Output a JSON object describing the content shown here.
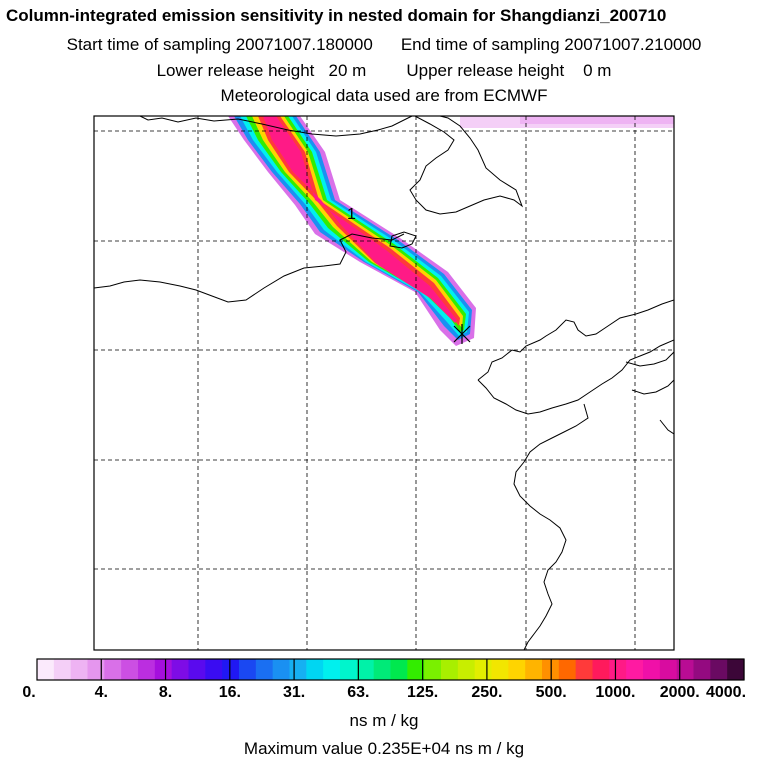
{
  "title": {
    "line1": "Column-integrated emission sensitivity in nested domain for Shangdianzi_200710",
    "start_label": "Start time of sampling 20071007.180000",
    "end_label": "End time of sampling 20071007.210000",
    "lower_label": "Lower release height   20 m",
    "upper_label": "Upper release height    0 m",
    "met_label": "Meteorological data used are from ECMWF"
  },
  "map": {
    "marker_label": "1",
    "release_marker": "release-site-cross"
  },
  "colorbar": {
    "tick_labels": [
      "0.",
      "4.",
      "8.",
      "16.",
      "31.",
      "63.",
      "125.",
      "250.",
      "500.",
      "1000.",
      "2000.",
      "4000."
    ],
    "colors": [
      "#fbeafc",
      "#f4cff7",
      "#eeb3f3",
      "#e596ee",
      "#d970e8",
      "#cc4fe3",
      "#bb2ee0",
      "#a50fdd",
      "#7e0ce6",
      "#5a0aee",
      "#3a0cf2",
      "#2018f3",
      "#1a48f2",
      "#1a6ff2",
      "#1a90f2",
      "#16b0f2",
      "#00d6f2",
      "#00f0ee",
      "#00f5cc",
      "#00f2a8",
      "#00ea78",
      "#00e84e",
      "#33ed00",
      "#7af000",
      "#a8ef00",
      "#c8ee00",
      "#e2ee00",
      "#f2e600",
      "#ffd400",
      "#ffb400",
      "#ff9000",
      "#ff6800",
      "#ff3a3a",
      "#ff1a5c",
      "#ff1a86",
      "#ff1aa2",
      "#f010a8",
      "#d80ca0",
      "#b90c94",
      "#940a80",
      "#6a0a62",
      "#3c0638"
    ],
    "units": "ns m / kg",
    "max_value_text": "Maximum value  0.235E+04 ns m / kg"
  }
}
